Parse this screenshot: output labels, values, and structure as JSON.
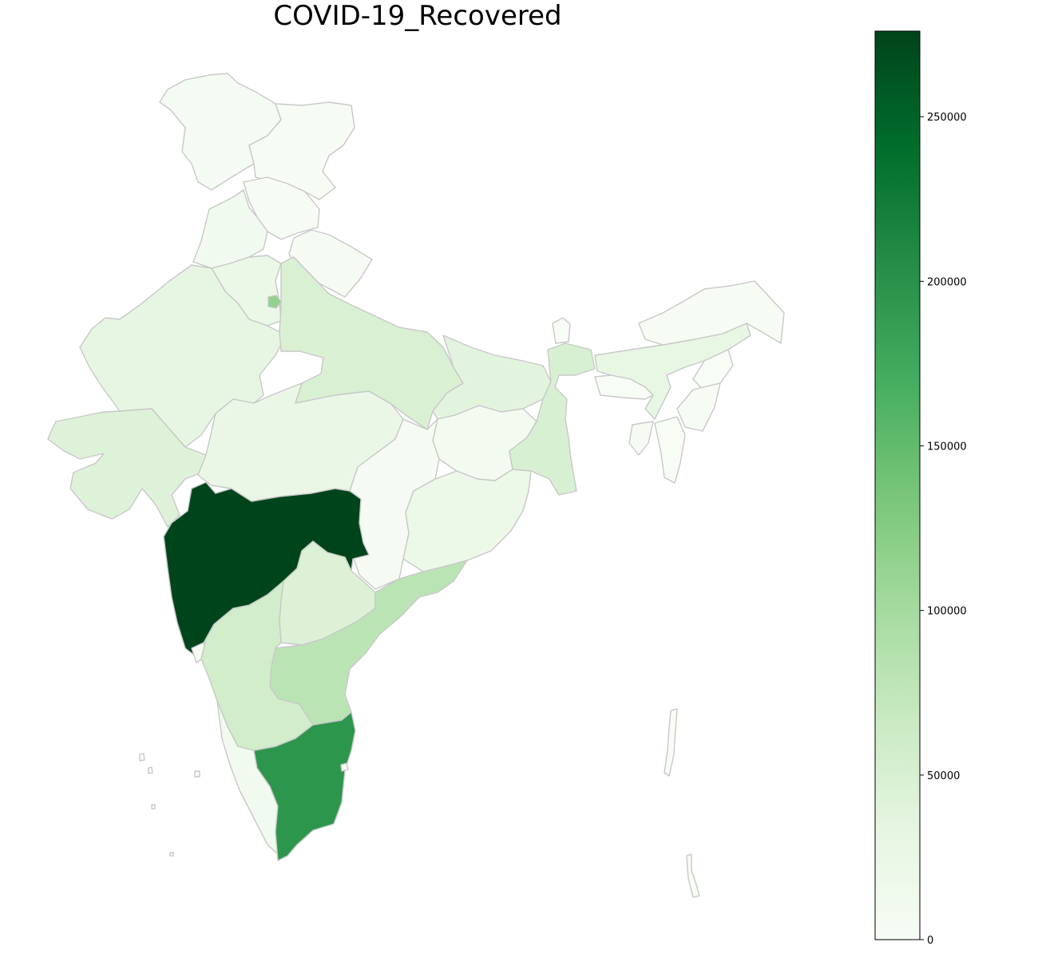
{
  "chart_data": {
    "type": "choropleth",
    "title": "COVID-19_Recovered",
    "colormap": "Greens",
    "vmin": 0,
    "vmax": 276000,
    "colorbar_ticks": [
      {
        "value": 0,
        "label": "0"
      },
      {
        "value": 50000,
        "label": "50000"
      },
      {
        "value": 100000,
        "label": "100000"
      },
      {
        "value": 150000,
        "label": "150000"
      },
      {
        "value": 200000,
        "label": "200000"
      },
      {
        "value": 250000,
        "label": "250000"
      }
    ],
    "legend": "colorbar-right",
    "colors": {
      "stroke": "#c8c8c8",
      "ramp": [
        "#f7fcf5",
        "#e5f5e0",
        "#c7e9c0",
        "#a1d99b",
        "#74c476",
        "#41ab5d",
        "#238b45",
        "#006d2c",
        "#00441b"
      ]
    },
    "regions": [
      {
        "name": "jammu-kashmir",
        "value": 5000
      },
      {
        "name": "ladakh",
        "value": 1000
      },
      {
        "name": "himachal-pradesh",
        "value": 2000
      },
      {
        "name": "punjab",
        "value": 12000
      },
      {
        "name": "uttarakhand",
        "value": 4000
      },
      {
        "name": "haryana",
        "value": 23000
      },
      {
        "name": "delhi",
        "value": 115000
      },
      {
        "name": "rajasthan",
        "value": 32000
      },
      {
        "name": "uttar-pradesh",
        "value": 48000
      },
      {
        "name": "gujarat",
        "value": 42000
      },
      {
        "name": "madhya-pradesh",
        "value": 25000
      },
      {
        "name": "bihar",
        "value": 37000
      },
      {
        "name": "jharkhand",
        "value": 7000
      },
      {
        "name": "west-bengal",
        "value": 50000
      },
      {
        "name": "chhattisgarh",
        "value": 4000
      },
      {
        "name": "odisha",
        "value": 22000
      },
      {
        "name": "maharashtra",
        "value": 276000
      },
      {
        "name": "telangana",
        "value": 45000
      },
      {
        "name": "andhra-pradesh",
        "value": 80000
      },
      {
        "name": "karnataka",
        "value": 58000
      },
      {
        "name": "goa",
        "value": 3000
      },
      {
        "name": "kerala",
        "value": 12000
      },
      {
        "name": "tamil-nadu",
        "value": 195000
      },
      {
        "name": "sikkim",
        "value": 500
      },
      {
        "name": "arunachal-pradesh",
        "value": 1000
      },
      {
        "name": "assam",
        "value": 28000
      },
      {
        "name": "meghalaya",
        "value": 300
      },
      {
        "name": "nagaland",
        "value": 600
      },
      {
        "name": "manipur",
        "value": 1500
      },
      {
        "name": "mizoram",
        "value": 300
      },
      {
        "name": "tripura",
        "value": 4000
      },
      {
        "name": "andaman-nicobar",
        "value": 200
      },
      {
        "name": "lakshadweep",
        "value": 0
      },
      {
        "name": "puducherry",
        "value": 3000
      }
    ]
  }
}
